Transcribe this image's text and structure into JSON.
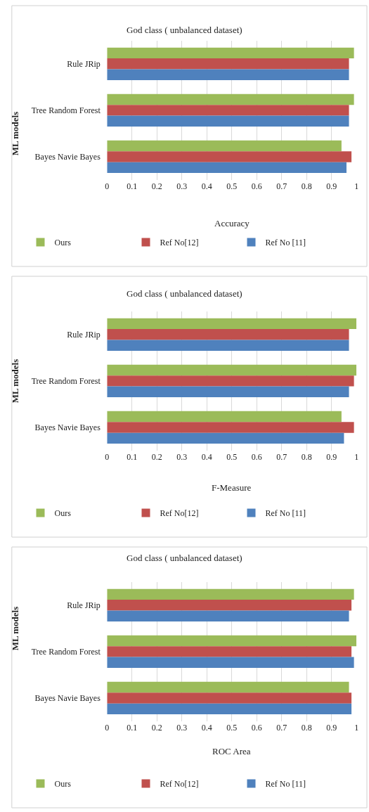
{
  "chart_data": [
    {
      "type": "bar",
      "orientation": "horizontal",
      "title": "God class ( unbalanced dataset)",
      "xlabel": "Accuracy",
      "ylabel": "ML models",
      "categories": [
        "Rule JRip",
        "Tree Random Forest",
        "Bayes Navie Bayes"
      ],
      "series": [
        {
          "name": "Ours",
          "color": "#9bbb59",
          "values": [
            0.99,
            0.99,
            0.94
          ]
        },
        {
          "name": "Ref No[12]",
          "color": "#c0504d",
          "values": [
            0.97,
            0.97,
            0.98
          ]
        },
        {
          "name": "Ref No [11]",
          "color": "#4f81bd",
          "values": [
            0.97,
            0.97,
            0.96
          ]
        }
      ],
      "xlim": [
        0,
        1
      ],
      "xticks": [
        0,
        0.1,
        0.2,
        0.3,
        0.4,
        0.5,
        0.6,
        0.7,
        0.8,
        0.9,
        1
      ],
      "grid": "x",
      "legend": "bottom"
    },
    {
      "type": "bar",
      "orientation": "horizontal",
      "title": "God class ( unbalanced dataset)",
      "xlabel": "F-Measure",
      "ylabel": "ML models",
      "categories": [
        "Rule JRip",
        "Tree Random Forest",
        "Bayes Navie Bayes"
      ],
      "series": [
        {
          "name": "Ours",
          "color": "#9bbb59",
          "values": [
            1.0,
            1.0,
            0.94
          ]
        },
        {
          "name": "Ref No[12]",
          "color": "#c0504d",
          "values": [
            0.97,
            0.99,
            0.99
          ]
        },
        {
          "name": "Ref No [11]",
          "color": "#4f81bd",
          "values": [
            0.97,
            0.97,
            0.95
          ]
        }
      ],
      "xlim": [
        0,
        1
      ],
      "xticks": [
        0,
        0.1,
        0.2,
        0.3,
        0.4,
        0.5,
        0.6,
        0.7,
        0.8,
        0.9,
        1
      ],
      "grid": "x",
      "legend": "bottom"
    },
    {
      "type": "bar",
      "orientation": "horizontal",
      "title": "God class ( unbalanced dataset)",
      "xlabel": "ROC Area",
      "ylabel": "ML models",
      "categories": [
        "Rule JRip",
        "Tree Random Forest",
        "Bayes Navie Bayes"
      ],
      "series": [
        {
          "name": "Ours",
          "color": "#9bbb59",
          "values": [
            0.99,
            1.0,
            0.97
          ]
        },
        {
          "name": "Ref No[12]",
          "color": "#c0504d",
          "values": [
            0.98,
            0.98,
            0.98
          ]
        },
        {
          "name": "Ref No [11]",
          "color": "#4f81bd",
          "values": [
            0.97,
            0.99,
            0.98
          ]
        }
      ],
      "xlim": [
        0,
        1
      ],
      "xticks": [
        0,
        0.1,
        0.2,
        0.3,
        0.4,
        0.5,
        0.6,
        0.7,
        0.8,
        0.9,
        1
      ],
      "grid": "x",
      "legend": "bottom"
    }
  ]
}
